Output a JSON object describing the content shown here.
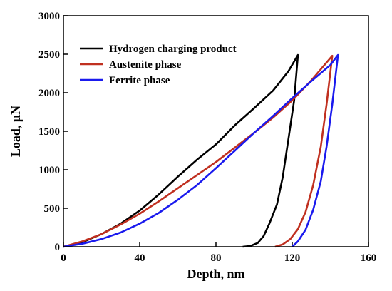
{
  "chart_data": {
    "type": "line",
    "title": "",
    "xlabel": "Depth, nm",
    "ylabel": "Load, μN",
    "xlim": [
      0,
      160
    ],
    "ylim": [
      0,
      3000
    ],
    "xticks": [
      0,
      40,
      80,
      120,
      160
    ],
    "yticks": [
      0,
      500,
      1000,
      1500,
      2000,
      2500,
      3000
    ],
    "grid": false,
    "legend_position": "top-left",
    "series": [
      {
        "name": "Hydrogen charging product",
        "color": "#000000",
        "loading": [
          [
            0,
            0
          ],
          [
            10,
            60
          ],
          [
            20,
            165
          ],
          [
            30,
            300
          ],
          [
            40,
            470
          ],
          [
            50,
            680
          ],
          [
            60,
            910
          ],
          [
            70,
            1130
          ],
          [
            80,
            1330
          ],
          [
            90,
            1580
          ],
          [
            100,
            1800
          ],
          [
            110,
            2030
          ],
          [
            118,
            2280
          ],
          [
            123,
            2490
          ]
        ],
        "unloading": [
          [
            123,
            2490
          ],
          [
            121,
            1900
          ],
          [
            118,
            1400
          ],
          [
            115,
            900
          ],
          [
            112,
            550
          ],
          [
            108,
            300
          ],
          [
            105,
            140
          ],
          [
            102,
            50
          ],
          [
            98,
            10
          ],
          [
            94,
            0
          ]
        ]
      },
      {
        "name": "Austenite phase",
        "color": "#c03020",
        "loading": [
          [
            0,
            0
          ],
          [
            10,
            70
          ],
          [
            20,
            165
          ],
          [
            30,
            290
          ],
          [
            40,
            430
          ],
          [
            50,
            590
          ],
          [
            60,
            760
          ],
          [
            70,
            930
          ],
          [
            80,
            1100
          ],
          [
            90,
            1290
          ],
          [
            100,
            1480
          ],
          [
            110,
            1680
          ],
          [
            120,
            1900
          ],
          [
            130,
            2160
          ],
          [
            141,
            2480
          ]
        ],
        "unloading": [
          [
            141,
            2480
          ],
          [
            138,
            1850
          ],
          [
            135,
            1300
          ],
          [
            131,
            800
          ],
          [
            127,
            450
          ],
          [
            123,
            230
          ],
          [
            119,
            100
          ],
          [
            115,
            30
          ],
          [
            111,
            0
          ]
        ]
      },
      {
        "name": "Ferrite phase",
        "color": "#1a1aee",
        "loading": [
          [
            0,
            0
          ],
          [
            10,
            40
          ],
          [
            20,
            100
          ],
          [
            30,
            185
          ],
          [
            40,
            300
          ],
          [
            50,
            440
          ],
          [
            60,
            610
          ],
          [
            70,
            800
          ],
          [
            80,
            1020
          ],
          [
            90,
            1250
          ],
          [
            100,
            1480
          ],
          [
            110,
            1700
          ],
          [
            120,
            1930
          ],
          [
            130,
            2150
          ],
          [
            140,
            2360
          ],
          [
            144,
            2490
          ]
        ],
        "unloading": [
          [
            144,
            2490
          ],
          [
            141,
            1850
          ],
          [
            138,
            1300
          ],
          [
            135,
            850
          ],
          [
            131,
            480
          ],
          [
            127,
            220
          ],
          [
            123,
            70
          ],
          [
            120,
            0
          ]
        ]
      }
    ]
  }
}
